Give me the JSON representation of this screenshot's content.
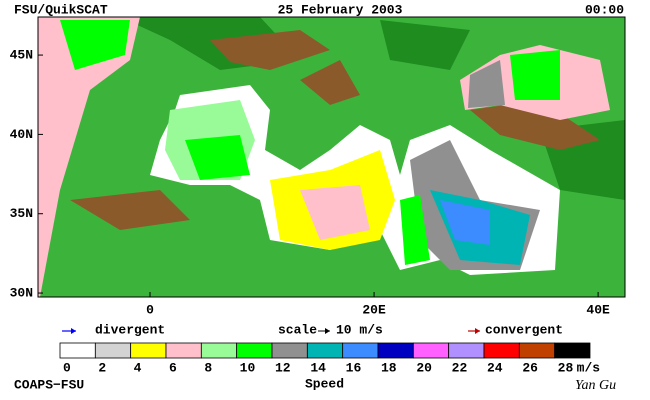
{
  "header": {
    "source": "FSU/QuikSCAT",
    "date": "25 February 2003",
    "time": "00:00"
  },
  "map": {
    "xlim": [
      -10,
      42.4
    ],
    "ylim": [
      29.75,
      47.4
    ],
    "lat_ticks": [
      {
        "value": 45,
        "label": "45N"
      },
      {
        "value": 40,
        "label": "40N"
      },
      {
        "value": 35,
        "label": "35N"
      },
      {
        "value": 30,
        "label": "30N"
      }
    ],
    "lon_ticks": [
      0,
      {
        "value": 20,
        "label": "20E"
      },
      {
        "value": 40,
        "label": "40E"
      }
    ]
  },
  "legend": {
    "divergent": "divergent",
    "divergent_color": "#0000ff",
    "scale": "scale",
    "scale_value": "10 m/s",
    "convergent": "convergent",
    "convergent_color": "#c00000"
  },
  "colorbar": {
    "title": "Speed",
    "unit": "m/s",
    "bins": [
      0,
      2,
      4,
      6,
      8,
      10,
      12,
      14,
      16,
      18,
      20,
      22,
      24,
      26,
      28
    ],
    "colors": [
      "#ffffff",
      "#d3d3d3",
      "#ffff00",
      "#ffc0cb",
      "#98fb98",
      "#00ff00",
      "#909090",
      "#00b4b4",
      "#3c8cff",
      "#0000c0",
      "#ff60ff",
      "#b090ff",
      "#ff0000",
      "#c04000",
      "#000000"
    ]
  },
  "footer": {
    "institution": "COAPS−FSU",
    "author": "Yan Gu"
  }
}
